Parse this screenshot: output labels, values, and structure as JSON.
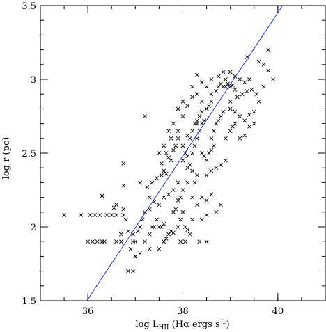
{
  "chart_data": {
    "type": "scatter",
    "title": "",
    "xlabel": {
      "prefix": "log L",
      "subscript": "HII",
      "suffix": " (Hα ergs s",
      "superscript": "-1",
      "close": ")"
    },
    "ylabel": "log r (pc)",
    "xlim": [
      35,
      41
    ],
    "ylim": [
      1.5,
      3.5
    ],
    "xticks": {
      "major": [
        36,
        38,
        40
      ],
      "major_labels": [
        "36",
        "38",
        "40"
      ],
      "minor_step": 0.5
    },
    "yticks": {
      "major": [
        1.5,
        2,
        2.5,
        3,
        3.5
      ],
      "major_labels": [
        "1.5",
        "2",
        "2.5",
        "3",
        "3.5"
      ],
      "minor_step": 0.1
    },
    "grid": false,
    "marker": "x",
    "marker_color": "#000000",
    "fit_line": {
      "color": "#2233cc",
      "points": [
        [
          35.98,
          1.5
        ],
        [
          40.1,
          3.5
        ]
      ]
    },
    "points": [
      [
        35.5,
        2.08
      ],
      [
        35.85,
        2.08
      ],
      [
        36.05,
        2.08
      ],
      [
        36.15,
        2.08
      ],
      [
        36.25,
        2.08
      ],
      [
        36.4,
        2.08
      ],
      [
        36.5,
        2.08
      ],
      [
        36.6,
        2.08
      ],
      [
        36.0,
        1.9
      ],
      [
        36.1,
        1.9
      ],
      [
        36.2,
        1.9
      ],
      [
        36.3,
        1.9
      ],
      [
        36.35,
        1.9
      ],
      [
        36.6,
        1.9
      ],
      [
        36.7,
        1.9
      ],
      [
        36.3,
        2.21
      ],
      [
        36.55,
        2.13
      ],
      [
        36.6,
        2.15
      ],
      [
        36.75,
        2.12
      ],
      [
        36.75,
        2.08
      ],
      [
        36.8,
        2.05
      ],
      [
        36.7,
        1.95
      ],
      [
        36.85,
        1.97
      ],
      [
        36.95,
        1.95
      ],
      [
        37.0,
        1.9
      ],
      [
        36.9,
        1.85
      ],
      [
        37.0,
        1.8
      ],
      [
        37.1,
        1.82
      ],
      [
        36.95,
        1.9
      ],
      [
        37.05,
        1.97
      ],
      [
        37.1,
        2.0
      ],
      [
        37.15,
        2.05
      ],
      [
        37.2,
        2.1
      ],
      [
        37.3,
        2.12
      ],
      [
        36.75,
        2.28
      ],
      [
        36.75,
        2.43
      ],
      [
        36.85,
        1.7
      ],
      [
        36.95,
        1.7
      ],
      [
        37.2,
        1.9
      ],
      [
        37.3,
        1.95
      ],
      [
        37.35,
        2.0
      ],
      [
        37.4,
        2.0
      ],
      [
        37.45,
        2.05
      ],
      [
        37.5,
        2.0
      ],
      [
        37.55,
        2.0
      ],
      [
        37.6,
        2.02
      ],
      [
        37.3,
        2.2
      ],
      [
        37.4,
        2.17
      ],
      [
        37.5,
        2.15
      ],
      [
        37.6,
        2.2
      ],
      [
        37.7,
        2.22
      ],
      [
        37.8,
        2.25
      ],
      [
        37.9,
        2.18
      ],
      [
        37.1,
        2.3
      ],
      [
        37.25,
        2.27
      ],
      [
        37.35,
        2.3
      ],
      [
        37.45,
        2.33
      ],
      [
        37.55,
        2.35
      ],
      [
        37.6,
        2.38
      ],
      [
        37.65,
        2.36
      ],
      [
        37.3,
        1.85
      ],
      [
        37.5,
        1.85
      ],
      [
        37.6,
        1.9
      ],
      [
        37.65,
        1.92
      ],
      [
        37.7,
        1.95
      ],
      [
        37.75,
        1.97
      ],
      [
        37.8,
        1.96
      ],
      [
        37.9,
        2.0
      ],
      [
        37.95,
        2.05
      ],
      [
        38.0,
        2.1
      ],
      [
        38.05,
        2.0
      ],
      [
        38.1,
        1.98
      ],
      [
        37.8,
        2.1
      ],
      [
        37.85,
        2.12
      ],
      [
        37.95,
        1.9
      ],
      [
        38.05,
        1.9
      ],
      [
        38.15,
        1.95
      ],
      [
        38.35,
        1.9
      ],
      [
        38.5,
        1.9
      ],
      [
        37.2,
        2.75
      ],
      [
        37.55,
        2.43
      ],
      [
        37.65,
        2.5
      ],
      [
        37.7,
        2.47
      ],
      [
        37.75,
        2.45
      ],
      [
        37.8,
        2.52
      ],
      [
        37.85,
        2.55
      ],
      [
        37.9,
        2.6
      ],
      [
        37.9,
        2.65
      ],
      [
        38.0,
        2.55
      ],
      [
        38.05,
        2.5
      ],
      [
        38.1,
        2.48
      ],
      [
        38.0,
        2.45
      ],
      [
        38.1,
        2.4
      ],
      [
        38.15,
        2.42
      ],
      [
        38.2,
        2.38
      ],
      [
        38.25,
        2.3
      ],
      [
        38.3,
        2.35
      ],
      [
        38.2,
        2.5
      ],
      [
        38.25,
        2.55
      ],
      [
        38.3,
        2.6
      ],
      [
        38.35,
        2.65
      ],
      [
        38.4,
        2.7
      ],
      [
        38.45,
        2.72
      ],
      [
        38.3,
        2.7
      ],
      [
        38.35,
        2.75
      ],
      [
        38.4,
        2.78
      ],
      [
        38.5,
        2.8
      ],
      [
        38.55,
        2.82
      ],
      [
        38.6,
        2.85
      ],
      [
        38.1,
        2.62
      ],
      [
        38.15,
        2.6
      ],
      [
        38.2,
        2.65
      ],
      [
        38.25,
        2.7
      ],
      [
        38.3,
        2.72
      ],
      [
        38.4,
        2.5
      ],
      [
        38.45,
        2.48
      ],
      [
        38.5,
        2.45
      ],
      [
        38.55,
        2.5
      ],
      [
        38.6,
        2.52
      ],
      [
        38.65,
        2.55
      ],
      [
        38.5,
        2.35
      ],
      [
        38.6,
        2.38
      ],
      [
        38.7,
        2.4
      ],
      [
        38.8,
        2.42
      ],
      [
        38.9,
        2.45
      ],
      [
        38.2,
        2.2
      ],
      [
        38.3,
        2.15
      ],
      [
        38.4,
        2.2
      ],
      [
        38.5,
        2.18
      ],
      [
        38.6,
        2.22
      ],
      [
        38.7,
        2.1
      ],
      [
        38.8,
        2.15
      ],
      [
        38.2,
        2.05
      ],
      [
        38.4,
        2.05
      ],
      [
        38.5,
        2.08
      ],
      [
        38.6,
        2.6
      ],
      [
        38.65,
        2.65
      ],
      [
        38.7,
        2.7
      ],
      [
        38.75,
        2.72
      ],
      [
        38.8,
        2.75
      ],
      [
        38.85,
        2.78
      ],
      [
        38.6,
        2.9
      ],
      [
        38.7,
        2.92
      ],
      [
        38.75,
        2.95
      ],
      [
        38.8,
        2.97
      ],
      [
        38.85,
        2.95
      ],
      [
        38.9,
        2.95
      ],
      [
        38.95,
        2.97
      ],
      [
        39.0,
        2.95
      ],
      [
        39.05,
        2.96
      ],
      [
        39.1,
        2.93
      ],
      [
        38.75,
        3.02
      ],
      [
        38.85,
        3.05
      ],
      [
        38.9,
        3.0
      ],
      [
        39.0,
        3.05
      ],
      [
        39.1,
        3.02
      ],
      [
        39.2,
        3.0
      ],
      [
        39.3,
        2.98
      ],
      [
        39.4,
        3.0
      ],
      [
        39.0,
        2.8
      ],
      [
        39.1,
        2.78
      ],
      [
        39.2,
        2.75
      ],
      [
        39.3,
        2.72
      ],
      [
        39.4,
        2.76
      ],
      [
        39.5,
        2.78
      ],
      [
        39.0,
        2.85
      ],
      [
        39.15,
        2.88
      ],
      [
        39.25,
        2.9
      ],
      [
        39.35,
        2.92
      ],
      [
        39.45,
        2.93
      ],
      [
        39.55,
        2.9
      ],
      [
        39.2,
        2.6
      ],
      [
        39.3,
        2.62
      ],
      [
        39.4,
        2.68
      ],
      [
        39.5,
        2.7
      ],
      [
        39.6,
        2.85
      ],
      [
        39.7,
        2.95
      ],
      [
        38.9,
        2.6
      ],
      [
        39.0,
        2.65
      ],
      [
        39.05,
        2.68
      ],
      [
        39.1,
        2.7
      ],
      [
        39.35,
        3.15
      ],
      [
        39.6,
        3.12
      ],
      [
        39.7,
        3.1
      ],
      [
        39.8,
        3.2
      ],
      [
        39.8,
        3.06
      ],
      [
        39.9,
        3.0
      ],
      [
        38.0,
        2.75
      ],
      [
        37.9,
        2.8
      ],
      [
        38.0,
        2.85
      ],
      [
        38.1,
        2.82
      ],
      [
        38.2,
        2.88
      ],
      [
        38.3,
        2.9
      ],
      [
        38.4,
        2.85
      ],
      [
        38.5,
        2.95
      ],
      [
        38.6,
        3.0
      ],
      [
        38.4,
        2.98
      ],
      [
        38.3,
        3.03
      ],
      [
        38.2,
        2.95
      ],
      [
        37.7,
        2.65
      ],
      [
        37.75,
        2.6
      ],
      [
        37.8,
        2.7
      ],
      [
        37.6,
        2.55
      ],
      [
        37.5,
        2.5
      ],
      [
        37.9,
        2.3
      ],
      [
        38.0,
        2.25
      ],
      [
        38.1,
        2.3
      ],
      [
        37.95,
        2.2
      ]
    ]
  }
}
